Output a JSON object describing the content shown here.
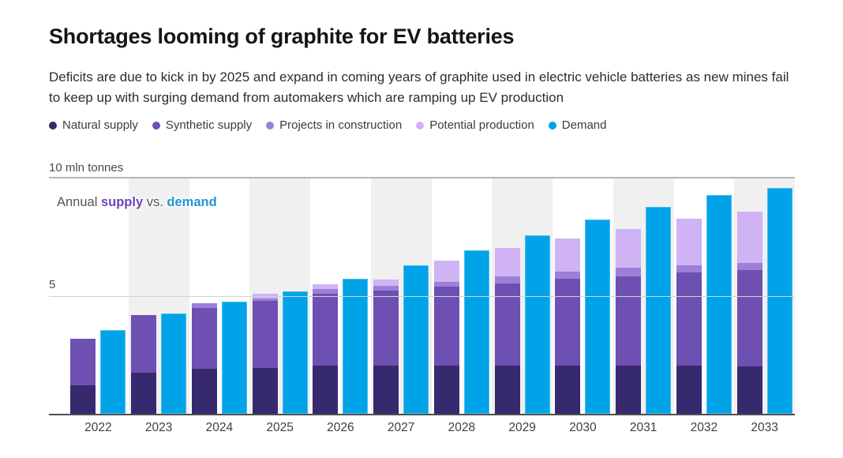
{
  "header": {
    "title": "Shortages looming of graphite for EV batteries",
    "subtitle": "Deficits are due to kick in by 2025 and expand in coming years of graphite used in electric vehicle batteries as new mines fail to keep up with surging demand from automakers which are ramping up EV production"
  },
  "legend": {
    "items": [
      {
        "label": "Natural supply",
        "color_key": "natural"
      },
      {
        "label": "Synthetic supply",
        "color_key": "synthetic"
      },
      {
        "label": "Projects in construction",
        "color_key": "projects"
      },
      {
        "label": "Potential production",
        "color_key": "potential"
      },
      {
        "label": "Demand",
        "color_key": "demand"
      }
    ]
  },
  "axis": {
    "top_label": "10 mln tonnes",
    "mid_label": "5"
  },
  "annotation": {
    "prefix": "Annual ",
    "supply_word": "supply",
    "middle": " vs. ",
    "demand_word": "demand"
  },
  "colors": {
    "natural": "#37296e",
    "synthetic": "#6e4fb2",
    "projects": "#9c7fd8",
    "potential": "#cfb3f4",
    "demand": "#00a3e8",
    "band": "#f0f0f0",
    "supply_word": "#6d45b5",
    "demand_word": "#1e95da"
  },
  "chart_data": {
    "type": "bar",
    "title": "Annual supply vs. demand",
    "unit": "mln tonnes",
    "ylabel": "mln tonnes",
    "xlabel": "",
    "ylim": [
      0,
      10
    ],
    "gridlines": [
      5,
      10
    ],
    "legend_position": "top",
    "categories": [
      "2022",
      "2023",
      "2024",
      "2025",
      "2026",
      "2027",
      "2028",
      "2029",
      "2030",
      "2031",
      "2032",
      "2033"
    ],
    "shaded_years": [
      "2023",
      "2025",
      "2027",
      "2029",
      "2031",
      "2033"
    ],
    "series": [
      {
        "name": "Natural supply",
        "color_key": "natural",
        "stack": "supply",
        "values": [
          1.2,
          1.75,
          1.9,
          1.95,
          2.05,
          2.05,
          2.05,
          2.05,
          2.05,
          2.05,
          2.05,
          2.0
        ]
      },
      {
        "name": "Synthetic supply",
        "color_key": "synthetic",
        "stack": "supply",
        "values": [
          2.0,
          2.45,
          2.6,
          2.85,
          3.05,
          3.2,
          3.35,
          3.5,
          3.7,
          3.8,
          3.95,
          4.1
        ]
      },
      {
        "name": "Projects in construction",
        "color_key": "projects",
        "stack": "supply",
        "values": [
          0.0,
          0.0,
          0.2,
          0.1,
          0.2,
          0.2,
          0.2,
          0.3,
          0.3,
          0.35,
          0.3,
          0.3
        ]
      },
      {
        "name": "Potential production",
        "color_key": "potential",
        "stack": "supply",
        "values": [
          0.0,
          0.0,
          0.0,
          0.2,
          0.2,
          0.25,
          0.9,
          1.2,
          1.4,
          1.65,
          2.0,
          2.2
        ]
      },
      {
        "name": "Demand",
        "color_key": "demand",
        "stack": "demand",
        "values": [
          3.55,
          4.25,
          4.75,
          5.2,
          5.75,
          6.3,
          6.95,
          7.6,
          8.25,
          8.8,
          9.3,
          9.6
        ]
      }
    ],
    "supply_totals": [
      3.2,
      4.2,
      4.7,
      5.1,
      5.5,
      5.7,
      6.5,
      7.05,
      7.45,
      7.85,
      8.3,
      8.6
    ]
  }
}
